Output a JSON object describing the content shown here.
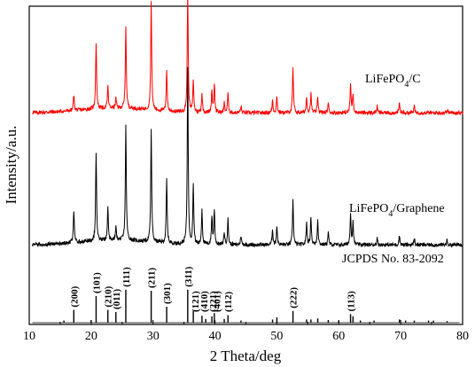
{
  "chart_data": {
    "type": "line",
    "xlabel": "2 Theta/deg",
    "ylabel": "Intensity/a.u.",
    "xlim": [
      10,
      80
    ],
    "xticks": [
      10,
      20,
      30,
      40,
      50,
      60,
      70,
      80
    ],
    "yticks_shown": false,
    "grid": false,
    "series": [
      {
        "name": "LiFePO4/C",
        "name_parts": [
          "LiFePO",
          "4",
          "/C"
        ],
        "color": "#ff0000",
        "offset": 0.62,
        "baseline": 0.045,
        "noise": 0.006,
        "peaks": [
          [
            17.2,
            0.05
          ],
          [
            20.8,
            0.21
          ],
          [
            22.7,
            0.07
          ],
          [
            24.0,
            0.03
          ],
          [
            25.6,
            0.26
          ],
          [
            29.7,
            0.34
          ],
          [
            32.2,
            0.13
          ],
          [
            35.6,
            0.38
          ],
          [
            36.5,
            0.1
          ],
          [
            37.9,
            0.06
          ],
          [
            39.5,
            0.07
          ],
          [
            39.9,
            0.09
          ],
          [
            41.5,
            0.03
          ],
          [
            42.1,
            0.06
          ],
          [
            44.2,
            0.02
          ],
          [
            49.3,
            0.04
          ],
          [
            50.0,
            0.05
          ],
          [
            52.6,
            0.14
          ],
          [
            54.8,
            0.05
          ],
          [
            55.5,
            0.06
          ],
          [
            56.6,
            0.05
          ],
          [
            58.3,
            0.03
          ],
          [
            61.9,
            0.09
          ],
          [
            62.3,
            0.06
          ],
          [
            66.2,
            0.02
          ],
          [
            69.8,
            0.03
          ],
          [
            72.2,
            0.02
          ],
          [
            77.5,
            0.01
          ]
        ]
      },
      {
        "name": "LiFePO4/Graphene",
        "name_parts": [
          "LiFePO",
          "4",
          "/Graphene"
        ],
        "color": "#000000",
        "offset": 0.22,
        "baseline": 0.03,
        "noise": 0.006,
        "peaks": [
          [
            17.2,
            0.1
          ],
          [
            20.8,
            0.28
          ],
          [
            22.7,
            0.1
          ],
          [
            24.0,
            0.04
          ],
          [
            25.6,
            0.36
          ],
          [
            29.7,
            0.35
          ],
          [
            32.2,
            0.2
          ],
          [
            35.6,
            0.56
          ],
          [
            36.5,
            0.19
          ],
          [
            37.9,
            0.11
          ],
          [
            39.5,
            0.09
          ],
          [
            39.9,
            0.11
          ],
          [
            41.5,
            0.04
          ],
          [
            42.1,
            0.08
          ],
          [
            44.2,
            0.03
          ],
          [
            49.3,
            0.05
          ],
          [
            50.0,
            0.06
          ],
          [
            52.6,
            0.14
          ],
          [
            54.8,
            0.07
          ],
          [
            55.5,
            0.09
          ],
          [
            56.6,
            0.08
          ],
          [
            58.3,
            0.04
          ],
          [
            61.9,
            0.1
          ],
          [
            62.3,
            0.07
          ],
          [
            66.2,
            0.02
          ],
          [
            69.8,
            0.03
          ],
          [
            72.2,
            0.02
          ],
          [
            77.5,
            0.015
          ]
        ]
      }
    ],
    "reference": {
      "label": "JCPDS No. 83-2092",
      "sticks": [
        [
          15.6,
          0.04
        ],
        [
          17.2,
          0.24
        ],
        [
          20.0,
          0.05
        ],
        [
          20.8,
          0.5
        ],
        [
          22.7,
          0.24
        ],
        [
          24.0,
          0.2
        ],
        [
          25.6,
          0.62
        ],
        [
          29.7,
          0.6
        ],
        [
          32.2,
          0.3
        ],
        [
          35.6,
          0.62
        ],
        [
          36.5,
          0.22
        ],
        [
          37.9,
          0.13
        ],
        [
          38.5,
          0.07
        ],
        [
          39.5,
          0.12
        ],
        [
          39.9,
          0.18
        ],
        [
          41.5,
          0.07
        ],
        [
          42.1,
          0.14
        ],
        [
          44.2,
          0.04
        ],
        [
          49.3,
          0.06
        ],
        [
          50.0,
          0.1
        ],
        [
          52.6,
          0.22
        ],
        [
          54.8,
          0.06
        ],
        [
          55.5,
          0.06
        ],
        [
          56.6,
          0.08
        ],
        [
          58.3,
          0.05
        ],
        [
          60.0,
          0.04
        ],
        [
          61.9,
          0.16
        ],
        [
          62.3,
          0.12
        ],
        [
          63.5,
          0.04
        ],
        [
          65.7,
          0.04
        ],
        [
          69.8,
          0.06
        ],
        [
          70.8,
          0.04
        ],
        [
          72.2,
          0.04
        ],
        [
          74.5,
          0.04
        ],
        [
          75.3,
          0.04
        ],
        [
          77.5,
          0.03
        ]
      ],
      "hkl_labels": [
        {
          "text": "(200)",
          "x": 17.2
        },
        {
          "text": "(101)",
          "x": 20.8
        },
        {
          "text": "(210)",
          "x": 22.7
        },
        {
          "text": "(011)",
          "x": 24.0
        },
        {
          "text": "(111)",
          "x": 25.6
        },
        {
          "text": "(211)",
          "x": 29.7
        },
        {
          "text": "(301)",
          "x": 32.2
        },
        {
          "text": "(311)",
          "x": 35.6
        },
        {
          "text": "(121)",
          "x": 36.8
        },
        {
          "text": "(410)",
          "x": 38.2
        },
        {
          "text": "(221)",
          "x": 39.6
        },
        {
          "text": "(401)",
          "x": 40.3
        },
        {
          "text": "(112)",
          "x": 42.1
        },
        {
          "text": "(222)",
          "x": 52.6
        },
        {
          "text": "(113)",
          "x": 61.9
        }
      ]
    }
  }
}
